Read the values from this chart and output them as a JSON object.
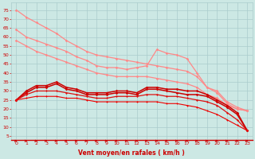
{
  "xlabel": "Vent moyen/en rafales ( km/h )",
  "bg_color": "#cce8e4",
  "grid_color": "#aacccc",
  "x_ticks": [
    0,
    1,
    2,
    3,
    4,
    5,
    6,
    7,
    8,
    9,
    10,
    11,
    12,
    13,
    14,
    15,
    16,
    17,
    18,
    19,
    20,
    21,
    22,
    23
  ],
  "y_ticks": [
    5,
    10,
    15,
    20,
    25,
    30,
    35,
    40,
    45,
    50,
    55,
    60,
    65,
    70,
    75
  ],
  "xlim": [
    -0.5,
    23.5
  ],
  "ylim": [
    3,
    79
  ],
  "lines": [
    {
      "x": [
        0,
        1,
        2,
        3,
        4,
        5,
        6,
        7,
        8,
        9,
        10,
        11,
        12,
        13,
        14,
        15,
        16,
        17,
        18,
        19,
        20,
        21,
        22,
        23
      ],
      "y": [
        75,
        71,
        68,
        65,
        62,
        58,
        55,
        52,
        50,
        49,
        48,
        47,
        46,
        45,
        44,
        43,
        42,
        41,
        38,
        32,
        29,
        23,
        20,
        19
      ],
      "color": "#ff8888",
      "lw": 0.9,
      "marker": "D",
      "ms": 1.8
    },
    {
      "x": [
        0,
        1,
        2,
        3,
        4,
        5,
        6,
        7,
        8,
        9,
        10,
        11,
        12,
        13,
        14,
        15,
        16,
        17,
        18,
        19,
        20,
        21,
        22,
        23
      ],
      "y": [
        64,
        60,
        58,
        56,
        54,
        52,
        49,
        47,
        44,
        43,
        43,
        42,
        43,
        44,
        53,
        51,
        50,
        48,
        40,
        32,
        30,
        24,
        21,
        19
      ],
      "color": "#ff8888",
      "lw": 0.9,
      "marker": "D",
      "ms": 1.8
    },
    {
      "x": [
        0,
        1,
        2,
        3,
        4,
        5,
        6,
        7,
        8,
        9,
        10,
        11,
        12,
        13,
        14,
        15,
        16,
        17,
        18,
        19,
        20,
        21,
        22,
        23
      ],
      "y": [
        58,
        55,
        52,
        50,
        48,
        46,
        44,
        42,
        40,
        39,
        38,
        38,
        38,
        38,
        37,
        36,
        35,
        34,
        32,
        28,
        26,
        22,
        20,
        19
      ],
      "color": "#ff8888",
      "lw": 0.9,
      "marker": "D",
      "ms": 1.8
    },
    {
      "x": [
        0,
        1,
        2,
        3,
        4,
        5,
        6,
        7,
        8,
        9,
        10,
        11,
        12,
        13,
        14,
        15,
        16,
        17,
        18,
        19,
        20,
        21,
        22,
        23
      ],
      "y": [
        25,
        30,
        33,
        33,
        35,
        32,
        31,
        29,
        29,
        29,
        30,
        30,
        29,
        32,
        32,
        31,
        31,
        30,
        30,
        28,
        25,
        22,
        18,
        8
      ],
      "color": "#cc0000",
      "lw": 1.1,
      "marker": "D",
      "ms": 1.8
    },
    {
      "x": [
        0,
        1,
        2,
        3,
        4,
        5,
        6,
        7,
        8,
        9,
        10,
        11,
        12,
        13,
        14,
        15,
        16,
        17,
        18,
        19,
        20,
        21,
        22,
        23
      ],
      "y": [
        25,
        29,
        32,
        32,
        34,
        31,
        30,
        28,
        28,
        28,
        29,
        29,
        28,
        31,
        31,
        30,
        29,
        28,
        28,
        27,
        24,
        21,
        17,
        8
      ],
      "color": "#cc0000",
      "lw": 1.1,
      "marker": "D",
      "ms": 1.8
    },
    {
      "x": [
        0,
        1,
        2,
        3,
        4,
        5,
        6,
        7,
        8,
        9,
        10,
        11,
        12,
        13,
        14,
        15,
        16,
        17,
        18,
        19,
        20,
        21,
        22,
        23
      ],
      "y": [
        25,
        28,
        30,
        30,
        30,
        29,
        28,
        27,
        26,
        26,
        27,
        27,
        27,
        28,
        28,
        27,
        27,
        26,
        25,
        24,
        22,
        18,
        14,
        8
      ],
      "color": "#dd1111",
      "lw": 0.9,
      "marker": "D",
      "ms": 1.5
    },
    {
      "x": [
        0,
        1,
        2,
        3,
        4,
        5,
        6,
        7,
        8,
        9,
        10,
        11,
        12,
        13,
        14,
        15,
        16,
        17,
        18,
        19,
        20,
        21,
        22,
        23
      ],
      "y": [
        25,
        26,
        27,
        27,
        27,
        26,
        26,
        25,
        24,
        24,
        24,
        24,
        24,
        24,
        24,
        23,
        23,
        22,
        21,
        19,
        17,
        14,
        11,
        8
      ],
      "color": "#ee0000",
      "lw": 0.8,
      "marker": "D",
      "ms": 1.3
    }
  ],
  "arrow_color": "#cc0000",
  "xlabel_color": "#cc0000",
  "tick_color": "#cc0000",
  "tick_fontsize": 4.5,
  "xlabel_fontsize": 5.5
}
